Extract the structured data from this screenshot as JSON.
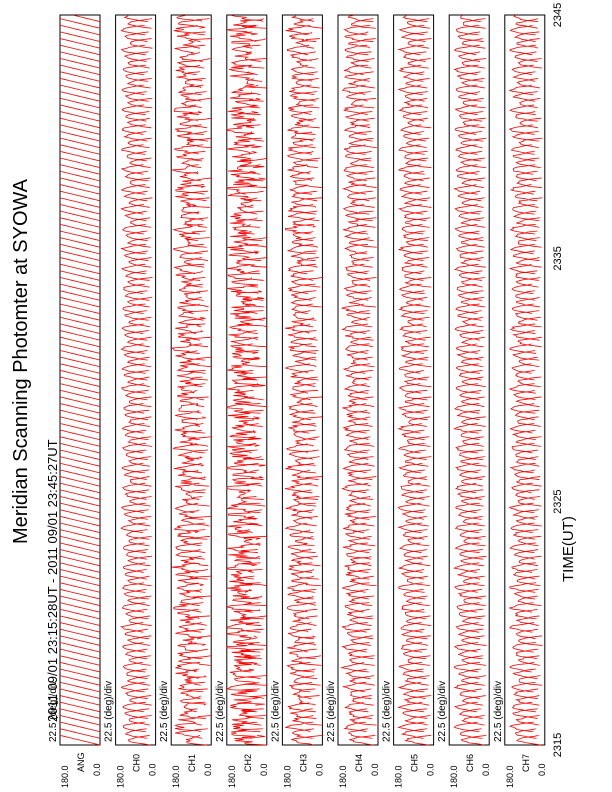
{
  "header": {
    "title": "Meridian Scanning Photomter at SYOWA",
    "time_range": "2011 09/01 23:15:28UT - 2011 09/01 23:45:27UT"
  },
  "chart_data": {
    "type": "line",
    "title": "Meridian Scanning Photomter at SYOWA",
    "subtitle": "2011 09/01 23:15:28UT - 2011 09/01 23:45:27UT",
    "xlabel": "TIME(UT)",
    "x_ticks": [
      "2315",
      "2325",
      "2335",
      "2345"
    ],
    "xlim": [
      "23:15:28",
      "23:45:27"
    ],
    "panel_scale": "22.5 (deg)/div",
    "y_tick_top": "180.0",
    "y_tick_bottom": "0.0",
    "line_color": "#ff0000",
    "panels": [
      {
        "label": "ANG",
        "kind": "angle"
      },
      {
        "label": "CH0",
        "kind": "intensity",
        "noise": 0.08
      },
      {
        "label": "CH1",
        "kind": "intensity",
        "noise": 0.35
      },
      {
        "label": "CH2",
        "kind": "intensity",
        "noise": 0.55
      },
      {
        "label": "CH3",
        "kind": "intensity",
        "noise": 0.25
      },
      {
        "label": "CH4",
        "kind": "intensity",
        "noise": 0.18
      },
      {
        "label": "CH5",
        "kind": "intensity",
        "noise": 0.12
      },
      {
        "label": "CH6",
        "kind": "intensity",
        "noise": 0.1
      },
      {
        "label": "CH7",
        "kind": "intensity",
        "noise": 0.12
      }
    ]
  }
}
